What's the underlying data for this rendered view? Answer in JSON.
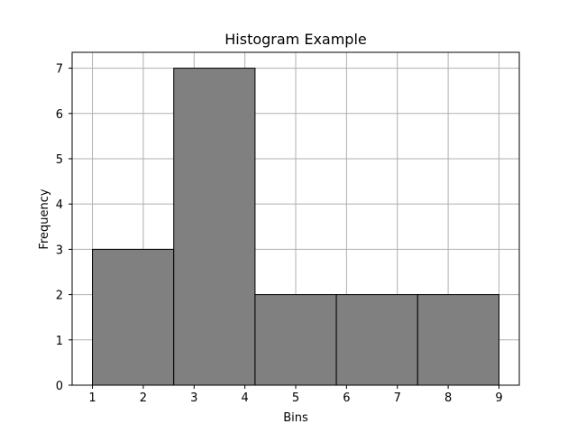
{
  "chart_data": {
    "type": "bar",
    "title": "Histogram Example",
    "xlabel": "Bins",
    "ylabel": "Frequency",
    "xlim": [
      0.6,
      9.4
    ],
    "ylim": [
      0,
      7.35
    ],
    "grid": true,
    "bins": [
      {
        "start": 1.0,
        "end": 2.6,
        "value": 3
      },
      {
        "start": 2.6,
        "end": 4.2,
        "value": 7
      },
      {
        "start": 4.2,
        "end": 5.8,
        "value": 2
      },
      {
        "start": 5.8,
        "end": 7.4,
        "value": 2
      },
      {
        "start": 7.4,
        "end": 9.0,
        "value": 2
      }
    ],
    "xticks": [
      "1",
      "2",
      "3",
      "4",
      "5",
      "6",
      "7",
      "8",
      "9"
    ],
    "yticks": [
      "0",
      "1",
      "2",
      "3",
      "4",
      "5",
      "6",
      "7"
    ],
    "bar_color": "#808080",
    "edge_color": "#000000"
  }
}
